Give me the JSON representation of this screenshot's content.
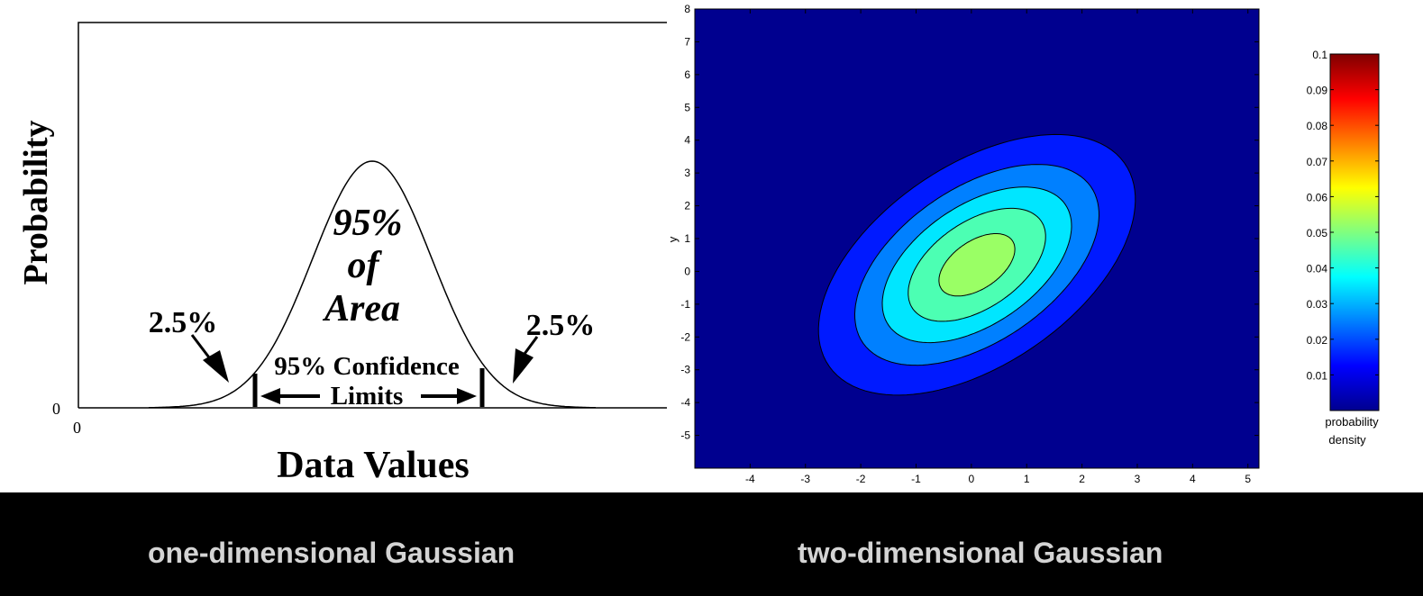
{
  "captions": {
    "left": "one-dimensional Gaussian",
    "right": "two-dimensional Gaussian"
  },
  "chart_data": [
    {
      "type": "line",
      "title": "",
      "xlabel": "Data Values",
      "ylabel": "Probability",
      "origin_labels": {
        "y": "0",
        "x": "0"
      },
      "curve": "normal distribution",
      "annotations": {
        "center_lines": [
          "95%",
          "of",
          "Area"
        ],
        "left_tail": "2.5%",
        "right_tail": "2.5%",
        "limits_line1": "95% Confidence",
        "limits_line2": "Limits"
      },
      "colors": {
        "line": "#000000",
        "background": "#ffffff"
      }
    },
    {
      "type": "heatmap",
      "subtype": "filled contour",
      "title": "",
      "xlabel": "",
      "ylabel": "y",
      "xlim": [
        -5,
        5.2
      ],
      "ylim": [
        -6,
        8
      ],
      "x_ticks": [
        -4,
        -3,
        -2,
        -1,
        0,
        1,
        2,
        3,
        4,
        5
      ],
      "y_ticks": [
        -5,
        -4,
        -3,
        -2,
        -1,
        0,
        1,
        2,
        3,
        4,
        5,
        6,
        7,
        8
      ],
      "center": [
        0.1,
        0.2
      ],
      "sigma_x": 1.55,
      "sigma_y": 2.15,
      "rho": 0.5,
      "levels": [
        0.01,
        0.02,
        0.03,
        0.04,
        0.05,
        0.06,
        0.07,
        0.08,
        0.09
      ],
      "colormap": "jet",
      "colorbar": {
        "ticks": [
          "0.1",
          "0.09",
          "0.08",
          "0.07",
          "0.06",
          "0.05",
          "0.04",
          "0.03",
          "0.02",
          "0.01"
        ],
        "range": [
          0,
          0.1
        ],
        "label_line1": "probability",
        "label_line2": "density"
      },
      "colors": {
        "background": "#00008f"
      }
    }
  ]
}
